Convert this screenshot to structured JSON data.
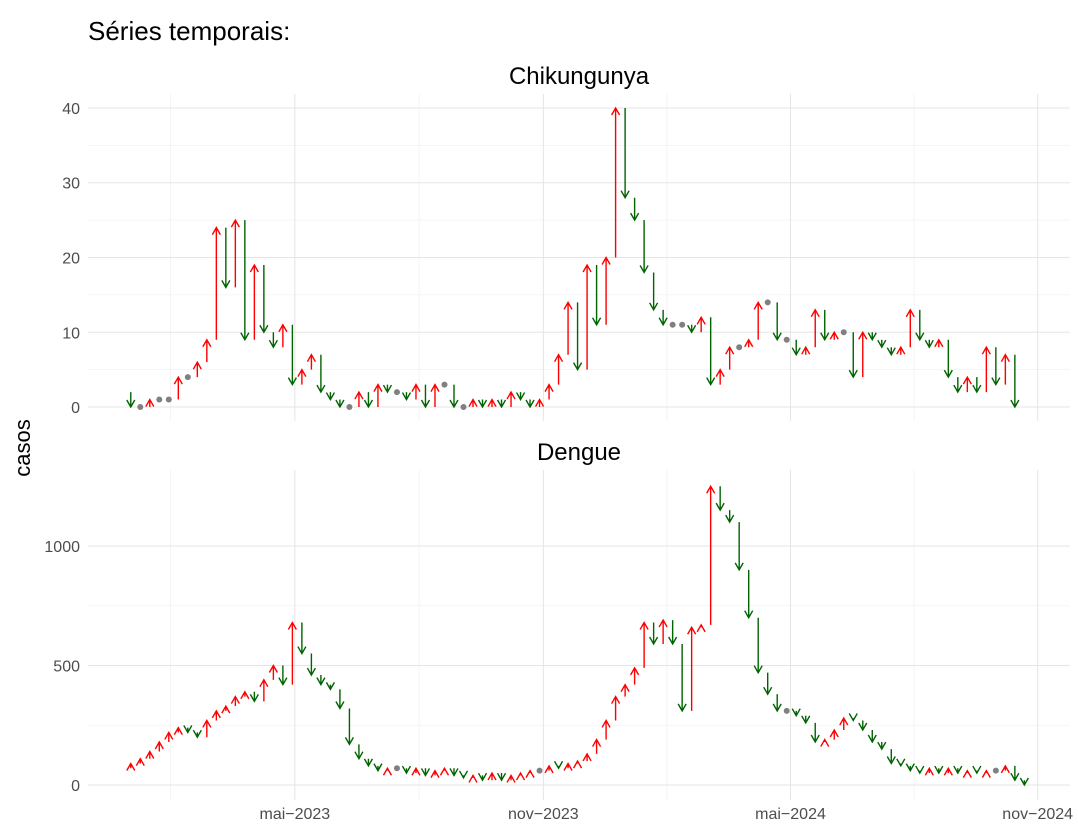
{
  "title": "Séries temporais:",
  "y_label": "casos",
  "up_color": "#ff0000",
  "down_color": "#006400",
  "equal_color": "#808080",
  "chart_data": [
    {
      "type": "arrow",
      "title": "Chikungunya",
      "x": [
        0,
        1,
        2,
        3,
        4,
        5,
        6,
        7,
        8,
        9,
        10,
        11,
        12,
        13,
        14,
        15,
        16,
        17,
        18,
        19,
        20,
        21,
        22,
        23,
        24,
        25,
        26,
        27,
        28,
        29,
        30,
        31,
        32,
        33,
        34,
        35,
        36,
        37,
        38,
        39,
        40,
        41,
        42,
        43,
        44,
        45,
        46,
        47,
        48,
        49,
        50,
        51,
        52,
        53,
        54,
        55,
        56,
        57,
        58,
        59,
        60,
        61,
        62,
        63,
        64,
        65,
        66,
        67,
        68,
        69,
        70,
        71,
        72,
        73,
        74,
        75,
        76,
        77,
        78,
        79,
        80,
        81,
        82,
        83,
        84,
        85,
        86,
        87,
        88,
        89,
        90,
        91,
        92,
        93,
        94,
        95
      ],
      "values": [
        2,
        0,
        0,
        1,
        1,
        1,
        4,
        4,
        6,
        9,
        24,
        16,
        25,
        9,
        19,
        10,
        8,
        11,
        3,
        5,
        7,
        2,
        1,
        0,
        0,
        2,
        0,
        3,
        2,
        2,
        1,
        3,
        0,
        3,
        3,
        0,
        0,
        1,
        0,
        1,
        0,
        2,
        1,
        0,
        1,
        3,
        7,
        14,
        5,
        19,
        11,
        20,
        40,
        28,
        25,
        18,
        13,
        11,
        11,
        11,
        10,
        12,
        3,
        5,
        8,
        8,
        9,
        14,
        14,
        9,
        9,
        7,
        8,
        13,
        9,
        10,
        10,
        4,
        10,
        9,
        8,
        7,
        8,
        13,
        9,
        8,
        9,
        4,
        2,
        4,
        2,
        8,
        3,
        7,
        0,
        null
      ],
      "xlim": [
        -3.5,
        99.8
      ],
      "ylim": [
        -1.87,
        41.87
      ],
      "yticks": [
        0,
        10,
        20,
        30,
        40
      ],
      "xticks": [
        {
          "value": 18.26,
          "label": "mai−2023"
        },
        {
          "value": 44.4,
          "label": "nov−2023"
        },
        {
          "value": 70.4,
          "label": "mai−2024"
        },
        {
          "value": 96.4,
          "label": "nov−2024"
        }
      ],
      "grid": true
    },
    {
      "type": "arrow",
      "title": "Dengue",
      "x": [
        0,
        1,
        2,
        3,
        4,
        5,
        6,
        7,
        8,
        9,
        10,
        11,
        12,
        13,
        14,
        15,
        16,
        17,
        18,
        19,
        20,
        21,
        22,
        23,
        24,
        25,
        26,
        27,
        28,
        29,
        30,
        31,
        32,
        33,
        34,
        35,
        36,
        37,
        38,
        39,
        40,
        41,
        42,
        43,
        44,
        45,
        46,
        47,
        48,
        49,
        50,
        51,
        52,
        53,
        54,
        55,
        56,
        57,
        58,
        59,
        60,
        61,
        62,
        63,
        64,
        65,
        66,
        67,
        68,
        69,
        70,
        71,
        72,
        73,
        74,
        75,
        76,
        77,
        78,
        79,
        80,
        81,
        82,
        83,
        84,
        85,
        86,
        87,
        88,
        89,
        90,
        91,
        92,
        93,
        94,
        95
      ],
      "values": [
        70,
        90,
        110,
        140,
        180,
        220,
        240,
        220,
        200,
        270,
        310,
        330,
        370,
        390,
        350,
        440,
        500,
        420,
        680,
        550,
        460,
        420,
        400,
        320,
        170,
        110,
        80,
        60,
        70,
        70,
        50,
        70,
        40,
        60,
        70,
        40,
        30,
        40,
        20,
        50,
        20,
        40,
        50,
        60,
        60,
        80,
        70,
        90,
        100,
        130,
        190,
        270,
        370,
        420,
        490,
        680,
        590,
        690,
        590,
        310,
        660,
        670,
        1250,
        1150,
        1100,
        900,
        700,
        470,
        380,
        310,
        310,
        290,
        260,
        180,
        190,
        230,
        280,
        270,
        230,
        180,
        150,
        90,
        80,
        60,
        50,
        70,
        50,
        70,
        50,
        60,
        50,
        60,
        60,
        80,
        20,
        0
      ],
      "xlim": [
        -3.5,
        99.8
      ],
      "ylim": [
        -62.8,
        1318
      ],
      "yticks": [
        0,
        500,
        1000
      ],
      "xticks": [
        {
          "value": 18.26,
          "label": "mai−2023"
        },
        {
          "value": 44.4,
          "label": "nov−2023"
        },
        {
          "value": 70.4,
          "label": "mai−2024"
        },
        {
          "value": 96.4,
          "label": "nov−2024"
        }
      ],
      "grid": true
    }
  ]
}
